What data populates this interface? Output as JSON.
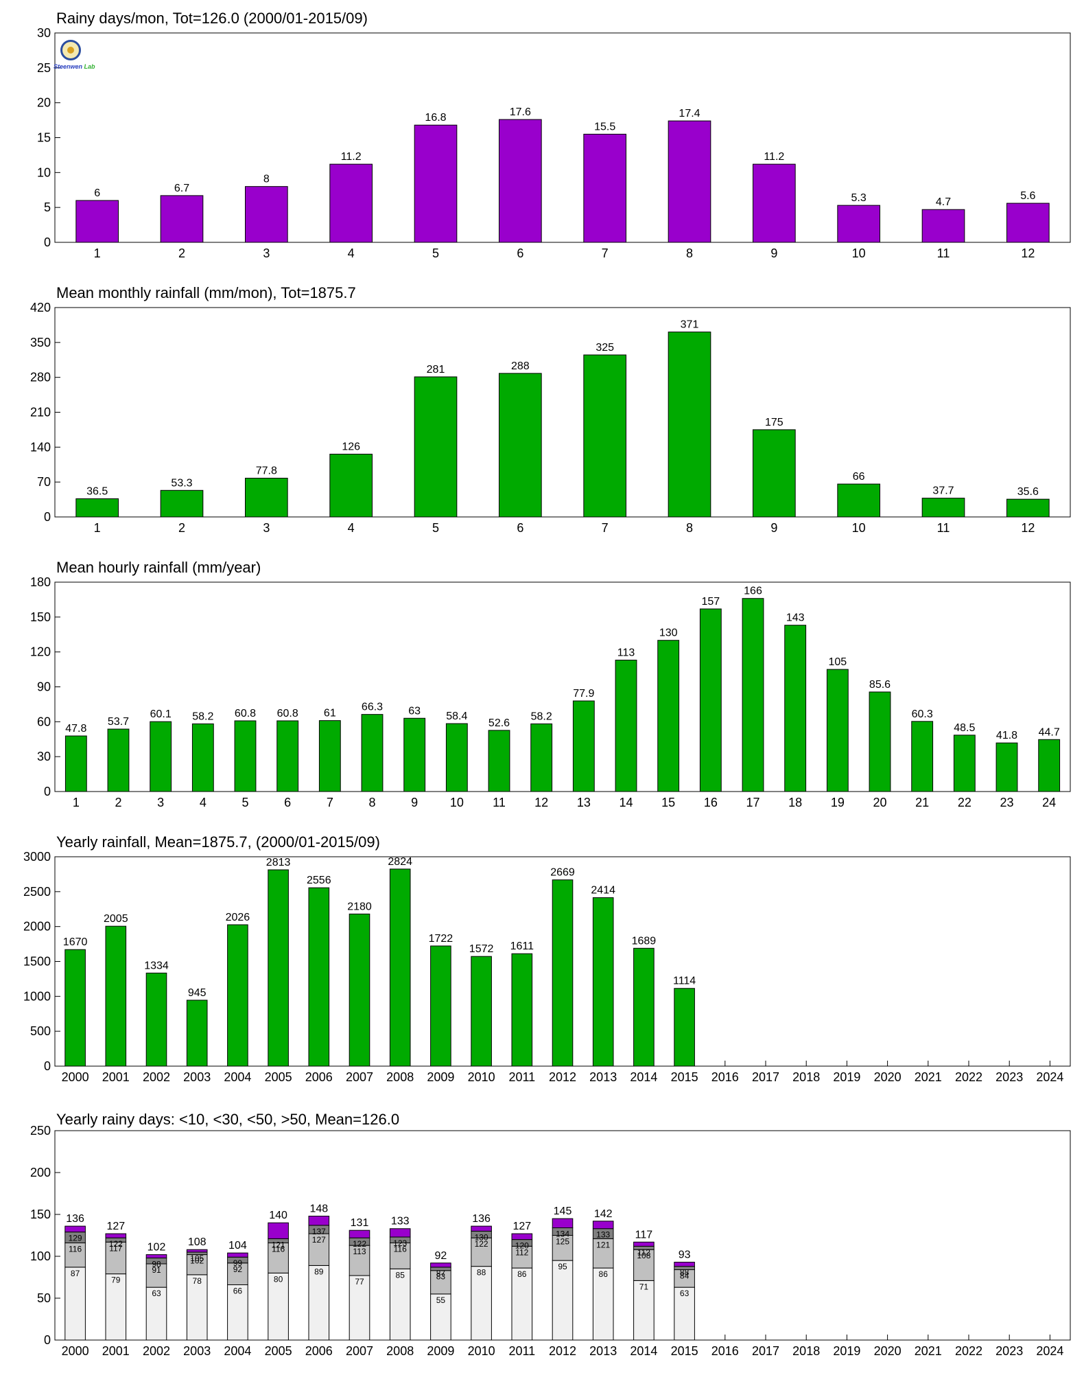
{
  "chart_data": [
    {
      "type": "bar",
      "title": "Rainy days/mon, Tot=126.0 (2000/01-2015/09)",
      "xlabel": "",
      "ylabel": "",
      "categories": [
        "1",
        "2",
        "3",
        "4",
        "5",
        "6",
        "7",
        "8",
        "9",
        "10",
        "11",
        "12"
      ],
      "values": [
        6,
        6.7,
        8,
        11.2,
        16.8,
        17.6,
        15.5,
        17.4,
        11.2,
        5.3,
        4.7,
        5.6
      ],
      "data_labels": [
        "6",
        "6.7",
        "8",
        "11.2",
        "16.8",
        "17.6",
        "15.5",
        "17.4",
        "11.2",
        "5.3",
        "4.7",
        "5.6"
      ],
      "ylim": [
        0,
        30
      ],
      "yticks": [
        0,
        5,
        10,
        15,
        20,
        25,
        30
      ],
      "bar_color": "#9900cc",
      "grid": false
    },
    {
      "type": "bar",
      "title": "Mean monthly rainfall (mm/mon), Tot=1875.7",
      "xlabel": "",
      "ylabel": "",
      "categories": [
        "1",
        "2",
        "3",
        "4",
        "5",
        "6",
        "7",
        "8",
        "9",
        "10",
        "11",
        "12"
      ],
      "values": [
        36.5,
        53.3,
        77.8,
        126,
        281,
        288,
        325,
        371,
        175,
        66,
        37.7,
        35.6
      ],
      "data_labels": [
        "36.5",
        "53.3",
        "77.8",
        "126",
        "281",
        "288",
        "325",
        "371",
        "175",
        "66",
        "37.7",
        "35.6"
      ],
      "ylim": [
        0,
        420
      ],
      "yticks": [
        0,
        70,
        140,
        210,
        280,
        350,
        420
      ],
      "bar_color": "#00aa00",
      "grid": false
    },
    {
      "type": "bar",
      "title": "Mean hourly rainfall (mm/year)",
      "xlabel": "",
      "ylabel": "",
      "categories": [
        "1",
        "2",
        "3",
        "4",
        "5",
        "6",
        "7",
        "8",
        "9",
        "10",
        "11",
        "12",
        "13",
        "14",
        "15",
        "16",
        "17",
        "18",
        "19",
        "20",
        "21",
        "22",
        "23",
        "24"
      ],
      "values": [
        47.8,
        53.7,
        60.1,
        58.2,
        60.8,
        60.8,
        61,
        66.3,
        63,
        58.4,
        52.6,
        58.2,
        77.9,
        113,
        130,
        157,
        166,
        143,
        105,
        85.6,
        60.3,
        48.5,
        41.8,
        44.7
      ],
      "data_labels": [
        "47.8",
        "53.7",
        "60.1",
        "58.2",
        "60.8",
        "60.8",
        "61",
        "66.3",
        "63",
        "58.4",
        "52.6",
        "58.2",
        "77.9",
        "113",
        "130",
        "157",
        "166",
        "143",
        "105",
        "85.6",
        "60.3",
        "48.5",
        "41.8",
        "44.7"
      ],
      "ylim": [
        0,
        180
      ],
      "yticks": [
        0,
        30,
        60,
        90,
        120,
        150,
        180
      ],
      "bar_color": "#00aa00",
      "grid": false
    },
    {
      "type": "bar",
      "title": "Yearly rainfall, Mean=1875.7, (2000/01-2015/09)",
      "xlabel": "",
      "ylabel": "",
      "categories": [
        "2000",
        "2001",
        "2002",
        "2003",
        "2004",
        "2005",
        "2006",
        "2007",
        "2008",
        "2009",
        "2010",
        "2011",
        "2012",
        "2013",
        "2014",
        "2015",
        "2016",
        "2017",
        "2018",
        "2019",
        "2020",
        "2021",
        "2022",
        "2023",
        "2024"
      ],
      "values": [
        1670,
        2005,
        1334,
        945,
        2026,
        2813,
        2556,
        2180,
        2824,
        1722,
        1572,
        1611,
        2669,
        2414,
        1689,
        1114,
        null,
        null,
        null,
        null,
        null,
        null,
        null,
        null,
        null
      ],
      "data_labels": [
        "1670",
        "2005",
        "1334",
        "945",
        "2026",
        "2813",
        "2556",
        "2180",
        "2824",
        "1722",
        "1572",
        "1611",
        "2669",
        "2414",
        "1689",
        "1114",
        "",
        "",
        "",
        "",
        "",
        "",
        "",
        "",
        ""
      ],
      "ylim": [
        0,
        3000
      ],
      "yticks": [
        0,
        500,
        1000,
        1500,
        2000,
        2500,
        3000
      ],
      "bar_color": "#00aa00",
      "grid": false
    },
    {
      "type": "stacked_bar",
      "title": "Yearly rainy days: <10, <30, <50, >50, Mean=126.0",
      "xlabel": "",
      "ylabel": "",
      "categories": [
        "2000",
        "2001",
        "2002",
        "2003",
        "2004",
        "2005",
        "2006",
        "2007",
        "2008",
        "2009",
        "2010",
        "2011",
        "2012",
        "2013",
        "2014",
        "2015",
        "2016",
        "2017",
        "2018",
        "2019",
        "2020",
        "2021",
        "2022",
        "2023",
        "2024"
      ],
      "cumulative_levels": [
        [
          87,
          116,
          129,
          136
        ],
        [
          79,
          117,
          122,
          127
        ],
        [
          63,
          91,
          98,
          102
        ],
        [
          78,
          102,
          105,
          108
        ],
        [
          66,
          92,
          99,
          104
        ],
        [
          80,
          116,
          121,
          140
        ],
        [
          89,
          127,
          137,
          148
        ],
        [
          77,
          113,
          122,
          131
        ],
        [
          85,
          116,
          123,
          133
        ],
        [
          55,
          83,
          87,
          92
        ],
        [
          88,
          122,
          130,
          136
        ],
        [
          86,
          112,
          120,
          127
        ],
        [
          95,
          125,
          134,
          145
        ],
        [
          86,
          121,
          133,
          142
        ],
        [
          71,
          108,
          112,
          117
        ],
        [
          63,
          84,
          88,
          93
        ],
        null,
        null,
        null,
        null,
        null,
        null,
        null,
        null,
        null
      ],
      "segment_labels": [
        [
          "87",
          "116",
          "129"
        ],
        [
          "79",
          "117",
          "122"
        ],
        [
          "63",
          "91",
          "98"
        ],
        [
          "78",
          "102",
          "105"
        ],
        [
          "66",
          "92",
          "99"
        ],
        [
          "80",
          "116",
          "121"
        ],
        [
          "89",
          "127",
          "137"
        ],
        [
          "77",
          "113",
          "122"
        ],
        [
          "85",
          "116",
          "123"
        ],
        [
          "55",
          "83",
          "87"
        ],
        [
          "88",
          "122",
          "130"
        ],
        [
          "86",
          "112",
          "120"
        ],
        [
          "95",
          "125",
          "134"
        ],
        [
          "86",
          "121",
          "133"
        ],
        [
          "71",
          "108",
          "112"
        ],
        [
          "63",
          "84",
          "88"
        ]
      ],
      "series": [
        {
          "name": "<10",
          "color": "#f0f0f0"
        },
        {
          "name": "<30",
          "color": "#c0c0c0"
        },
        {
          "name": "<50",
          "color": "#808080"
        },
        {
          "name": ">50",
          "color": "#9900cc"
        }
      ],
      "ylim": [
        0,
        250
      ],
      "yticks": [
        0,
        50,
        100,
        150,
        200,
        250
      ],
      "grid": false
    }
  ],
  "logo": {
    "text_s": "Steenwen",
    "text_l": "Lab"
  }
}
